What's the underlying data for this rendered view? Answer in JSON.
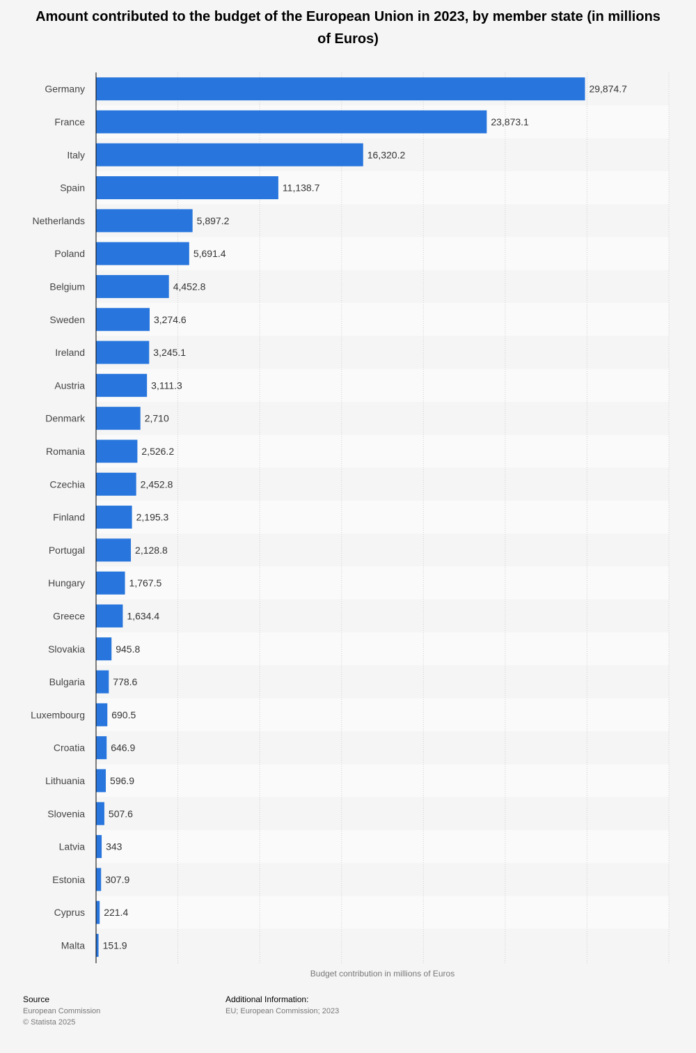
{
  "chart_data": {
    "type": "bar",
    "orientation": "horizontal",
    "title": "Amount contributed to the budget of the European Union in 2023, by member state (in millions of Euros)",
    "xlabel": "Budget contribution in millions of Euros",
    "ylabel": "",
    "xlim": [
      0,
      35000
    ],
    "grid": true,
    "categories": [
      "Germany",
      "France",
      "Italy",
      "Spain",
      "Netherlands",
      "Poland",
      "Belgium",
      "Sweden",
      "Ireland",
      "Austria",
      "Denmark",
      "Romania",
      "Czechia",
      "Finland",
      "Portugal",
      "Hungary",
      "Greece",
      "Slovakia",
      "Bulgaria",
      "Luxembourg",
      "Croatia",
      "Lithuania",
      "Slovenia",
      "Latvia",
      "Estonia",
      "Cyprus",
      "Malta"
    ],
    "values": [
      29874.7,
      23873.1,
      16320.2,
      11138.7,
      5897.2,
      5691.4,
      4452.8,
      3274.6,
      3245.1,
      3111.3,
      2710,
      2526.2,
      2452.8,
      2195.3,
      2128.8,
      1767.5,
      1634.4,
      945.8,
      778.6,
      690.5,
      646.9,
      596.9,
      507.6,
      343,
      307.9,
      221.4,
      151.9
    ],
    "value_labels": [
      "29,874.7",
      "23,873.1",
      "16,320.2",
      "11,138.7",
      "5,897.2",
      "5,691.4",
      "4,452.8",
      "3,274.6",
      "3,245.1",
      "3,111.3",
      "2,710",
      "2,526.2",
      "2,452.8",
      "2,195.3",
      "2,128.8",
      "1,767.5",
      "1,634.4",
      "945.8",
      "778.6",
      "690.5",
      "646.9",
      "596.9",
      "507.6",
      "343",
      "307.9",
      "221.4",
      "151.9"
    ],
    "bar_color": "#2876dd"
  },
  "footer": {
    "source_heading": "Source",
    "source_lines": [
      "European Commission",
      "© Statista 2025"
    ],
    "info_heading": "Additional Information:",
    "info_line": "EU; European Commission; 2023"
  }
}
